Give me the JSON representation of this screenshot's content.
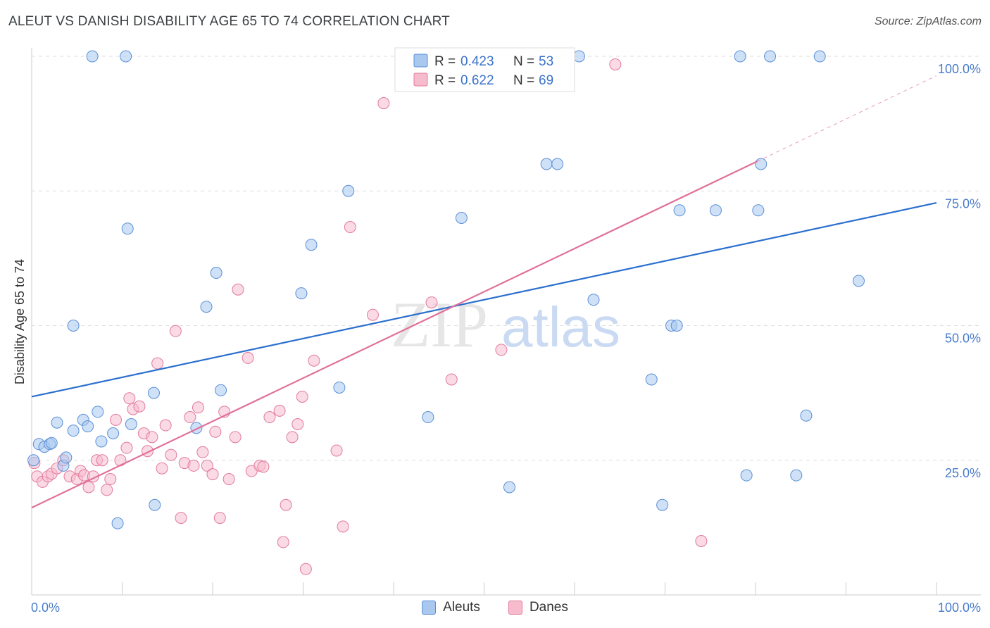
{
  "title": "ALEUT VS DANISH DISABILITY AGE 65 TO 74 CORRELATION CHART",
  "source": "Source: ZipAtlas.com",
  "watermark": {
    "zip": "ZIP",
    "atlas": "atlas"
  },
  "colors": {
    "blue_fill": "#a8c8f0",
    "blue_stroke": "#5b8fd6",
    "blue_line": "#2b6fce",
    "pink_fill": "#f6bccd",
    "pink_stroke": "#e37a9b",
    "pink_line": "#e0709a",
    "tick_label": "#4a7cc9",
    "grid": "#dddddd"
  },
  "legend_top": [
    {
      "r_label": "R = ",
      "r_value": "0.423",
      "n_label": "N = ",
      "n_value": "53"
    },
    {
      "r_label": "R = ",
      "r_value": "0.622",
      "n_label": "N = ",
      "n_value": "69"
    }
  ],
  "legend_bottom": [
    "Aleuts",
    "Danes"
  ],
  "chart_data": {
    "type": "scatter",
    "title": "ALEUT VS DANISH DISABILITY AGE 65 TO 74 CORRELATION CHART",
    "xlabel": "",
    "ylabel": "Disability Age 65 to 74",
    "xlim": [
      0,
      100
    ],
    "ylim": [
      0,
      102
    ],
    "x_tick_labels": [
      "0.0%",
      "100.0%"
    ],
    "y_tick_values": [
      25,
      50,
      75,
      100
    ],
    "y_tick_labels": [
      "25.0%",
      "50.0%",
      "75.0%",
      "100.0%"
    ],
    "grid": true,
    "legend_position": "top-center",
    "series": [
      {
        "name": "Aleuts",
        "color": "#5b8fd6",
        "trend": {
          "x": [
            0,
            100
          ],
          "y": [
            36.8,
            72.8
          ]
        },
        "points": [
          [
            0.2,
            25
          ],
          [
            0.8,
            28
          ],
          [
            1.4,
            27.5
          ],
          [
            2.0,
            28
          ],
          [
            2.2,
            28.2
          ],
          [
            2.8,
            32
          ],
          [
            3.5,
            24
          ],
          [
            3.8,
            25.5
          ],
          [
            4.6,
            30.5
          ],
          [
            4.6,
            50
          ],
          [
            5.7,
            32.5
          ],
          [
            6.2,
            31.3
          ],
          [
            7.3,
            34
          ],
          [
            7.7,
            28.5
          ],
          [
            9.0,
            30
          ],
          [
            9.5,
            13.3
          ],
          [
            10.6,
            68
          ],
          [
            11.0,
            31.7
          ],
          [
            13.5,
            37.5
          ],
          [
            13.6,
            16.7
          ],
          [
            18.2,
            31
          ],
          [
            19.3,
            53.5
          ],
          [
            20.4,
            59.8
          ],
          [
            20.9,
            38
          ],
          [
            29.8,
            56
          ],
          [
            30.9,
            65
          ],
          [
            34.0,
            38.5
          ],
          [
            35.0,
            75
          ],
          [
            43.8,
            33
          ],
          [
            47.5,
            70
          ],
          [
            52.8,
            20
          ],
          [
            56.9,
            80
          ],
          [
            58.1,
            80
          ],
          [
            62.1,
            54.8
          ],
          [
            68.5,
            40
          ],
          [
            69.7,
            16.7
          ],
          [
            70.7,
            50
          ],
          [
            71.3,
            50
          ],
          [
            71.6,
            71.4
          ],
          [
            75.6,
            71.4
          ],
          [
            79.0,
            22.2
          ],
          [
            80.3,
            71.4
          ],
          [
            80.6,
            80
          ],
          [
            84.5,
            22.2
          ],
          [
            85.6,
            33.3
          ],
          [
            91.4,
            58.3
          ],
          [
            10.4,
            100
          ],
          [
            6.7,
            100
          ],
          [
            52.2,
            100
          ],
          [
            60.5,
            100
          ],
          [
            78.3,
            100
          ],
          [
            81.6,
            100
          ],
          [
            87.1,
            100
          ]
        ]
      },
      {
        "name": "Danes",
        "color": "#e37a9b",
        "trend": {
          "x": [
            0,
            80.2
          ],
          "y": [
            16.2,
            80.5
          ]
        },
        "trend_dashed": {
          "x": [
            80.2,
            100
          ],
          "y": [
            80.5,
            96.4
          ]
        },
        "points": [
          [
            0.3,
            24.5
          ],
          [
            0.6,
            22
          ],
          [
            1.2,
            21
          ],
          [
            1.8,
            22
          ],
          [
            2.2,
            22.5
          ],
          [
            2.8,
            23.5
          ],
          [
            3.5,
            25
          ],
          [
            4.2,
            22
          ],
          [
            5.0,
            21.5
          ],
          [
            5.4,
            23
          ],
          [
            5.8,
            22.2
          ],
          [
            6.3,
            20
          ],
          [
            6.8,
            22
          ],
          [
            7.2,
            25
          ],
          [
            7.8,
            25
          ],
          [
            8.3,
            19.5
          ],
          [
            8.7,
            21.5
          ],
          [
            9.3,
            32.5
          ],
          [
            9.8,
            25
          ],
          [
            10.5,
            27.3
          ],
          [
            10.8,
            36.5
          ],
          [
            11.2,
            34.5
          ],
          [
            11.9,
            35
          ],
          [
            12.4,
            30
          ],
          [
            12.8,
            26.7
          ],
          [
            13.3,
            29.3
          ],
          [
            13.9,
            43
          ],
          [
            14.4,
            23.5
          ],
          [
            14.8,
            31.5
          ],
          [
            15.4,
            26
          ],
          [
            15.9,
            49
          ],
          [
            16.5,
            14.3
          ],
          [
            16.9,
            24.5
          ],
          [
            17.5,
            33
          ],
          [
            17.9,
            24
          ],
          [
            18.4,
            34.8
          ],
          [
            18.9,
            26.5
          ],
          [
            19.4,
            24
          ],
          [
            20.0,
            22.4
          ],
          [
            20.3,
            30.3
          ],
          [
            20.8,
            14.3
          ],
          [
            21.3,
            34
          ],
          [
            21.8,
            21.5
          ],
          [
            22.5,
            29.3
          ],
          [
            22.8,
            56.7
          ],
          [
            23.9,
            44
          ],
          [
            24.3,
            23
          ],
          [
            25.2,
            24
          ],
          [
            25.6,
            23.8
          ],
          [
            26.3,
            33
          ],
          [
            27.4,
            34.2
          ],
          [
            27.8,
            9.8
          ],
          [
            28.1,
            16.7
          ],
          [
            28.8,
            29.3
          ],
          [
            29.4,
            31.7
          ],
          [
            29.9,
            36.8
          ],
          [
            30.3,
            4.8
          ],
          [
            31.2,
            43.5
          ],
          [
            33.7,
            26.8
          ],
          [
            34.4,
            12.7
          ],
          [
            35.2,
            68.3
          ],
          [
            37.7,
            52
          ],
          [
            38.9,
            91.3
          ],
          [
            44.2,
            54.3
          ],
          [
            46.4,
            40
          ],
          [
            51.8,
            100
          ],
          [
            51.9,
            45.5
          ],
          [
            64.5,
            98.5
          ],
          [
            74.0,
            10.0
          ]
        ]
      }
    ]
  }
}
